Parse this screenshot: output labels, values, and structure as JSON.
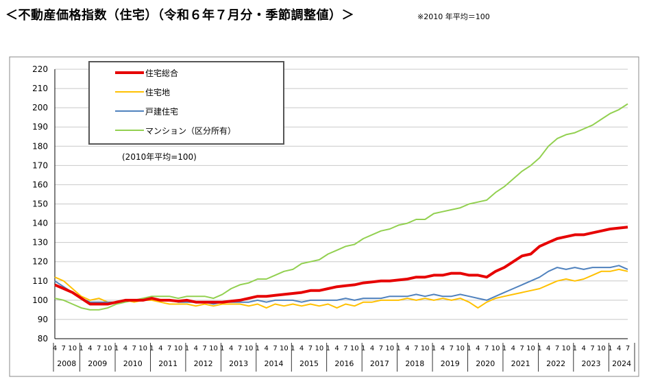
{
  "header": {
    "title": "＜不動産価格指数（住宅）（令和６年７月分・季節調整値）＞",
    "note": "※2010 年平均＝100"
  },
  "chart_data": {
    "type": "line",
    "annotation": "(2010年平均=100)",
    "ylim": [
      80,
      220
    ],
    "yticks": [
      80,
      90,
      100,
      110,
      120,
      130,
      140,
      150,
      160,
      170,
      180,
      190,
      200,
      210,
      220
    ],
    "x_start": "2008-04",
    "x_end": "2024-07",
    "month_ticks": [
      "4",
      "7",
      "10",
      "1"
    ],
    "years": [
      "2008",
      "2009",
      "2010",
      "2011",
      "2012",
      "2013",
      "2014",
      "2015",
      "2016",
      "2017",
      "2018",
      "2019",
      "2020",
      "2021",
      "2022",
      "2023",
      "2024"
    ],
    "grid": true,
    "legend_position": "top-left",
    "series": [
      {
        "name": "住宅総合",
        "color": "#e60000",
        "points": [
          [
            "2008-04",
            108
          ],
          [
            "2008-07",
            106
          ],
          [
            "2008-10",
            104
          ],
          [
            "2009-01",
            101
          ],
          [
            "2009-04",
            98
          ],
          [
            "2009-07",
            98
          ],
          [
            "2009-10",
            98
          ],
          [
            "2010-01",
            99
          ],
          [
            "2010-04",
            100
          ],
          [
            "2010-07",
            100
          ],
          [
            "2010-10",
            100
          ],
          [
            "2011-01",
            101
          ],
          [
            "2011-04",
            100
          ],
          [
            "2011-07",
            100
          ],
          [
            "2011-10",
            99.5
          ],
          [
            "2012-01",
            100
          ],
          [
            "2012-04",
            99
          ],
          [
            "2012-07",
            99
          ],
          [
            "2012-10",
            99
          ],
          [
            "2013-01",
            99
          ],
          [
            "2013-04",
            99.5
          ],
          [
            "2013-07",
            100
          ],
          [
            "2013-10",
            101
          ],
          [
            "2014-01",
            102
          ],
          [
            "2014-04",
            102
          ],
          [
            "2014-07",
            102.5
          ],
          [
            "2014-10",
            103
          ],
          [
            "2015-01",
            103.5
          ],
          [
            "2015-04",
            104
          ],
          [
            "2015-07",
            105
          ],
          [
            "2015-10",
            105
          ],
          [
            "2016-01",
            106
          ],
          [
            "2016-04",
            107
          ],
          [
            "2016-07",
            107.5
          ],
          [
            "2016-10",
            108
          ],
          [
            "2017-01",
            109
          ],
          [
            "2017-04",
            109.5
          ],
          [
            "2017-07",
            110
          ],
          [
            "2017-10",
            110
          ],
          [
            "2018-01",
            110.5
          ],
          [
            "2018-04",
            111
          ],
          [
            "2018-07",
            112
          ],
          [
            "2018-10",
            112
          ],
          [
            "2019-01",
            113
          ],
          [
            "2019-04",
            113
          ],
          [
            "2019-07",
            114
          ],
          [
            "2019-10",
            114
          ],
          [
            "2020-01",
            113
          ],
          [
            "2020-04",
            113
          ],
          [
            "2020-07",
            112
          ],
          [
            "2020-10",
            115
          ],
          [
            "2021-01",
            117
          ],
          [
            "2021-04",
            120
          ],
          [
            "2021-07",
            123
          ],
          [
            "2021-10",
            124
          ],
          [
            "2022-01",
            128
          ],
          [
            "2022-04",
            130
          ],
          [
            "2022-07",
            132
          ],
          [
            "2022-10",
            133
          ],
          [
            "2023-01",
            134
          ],
          [
            "2023-04",
            134
          ],
          [
            "2023-07",
            135
          ],
          [
            "2023-10",
            136
          ],
          [
            "2024-01",
            137
          ],
          [
            "2024-04",
            137.5
          ],
          [
            "2024-07",
            138
          ]
        ]
      },
      {
        "name": "住宅地",
        "color": "#ffc000",
        "points": [
          [
            "2008-04",
            112
          ],
          [
            "2008-07",
            110
          ],
          [
            "2008-10",
            106
          ],
          [
            "2009-01",
            102
          ],
          [
            "2009-04",
            100
          ],
          [
            "2009-07",
            101
          ],
          [
            "2009-10",
            99
          ],
          [
            "2010-01",
            99
          ],
          [
            "2010-04",
            100
          ],
          [
            "2010-07",
            99
          ],
          [
            "2010-10",
            100
          ],
          [
            "2011-01",
            100
          ],
          [
            "2011-04",
            99
          ],
          [
            "2011-07",
            98
          ],
          [
            "2011-10",
            98
          ],
          [
            "2012-01",
            98
          ],
          [
            "2012-04",
            97
          ],
          [
            "2012-07",
            98
          ],
          [
            "2012-10",
            97
          ],
          [
            "2013-01",
            98
          ],
          [
            "2013-04",
            98
          ],
          [
            "2013-07",
            98
          ],
          [
            "2013-10",
            97
          ],
          [
            "2014-01",
            98
          ],
          [
            "2014-04",
            96
          ],
          [
            "2014-07",
            98
          ],
          [
            "2014-10",
            97
          ],
          [
            "2015-01",
            98
          ],
          [
            "2015-04",
            97
          ],
          [
            "2015-07",
            98
          ],
          [
            "2015-10",
            97
          ],
          [
            "2016-01",
            98
          ],
          [
            "2016-04",
            96
          ],
          [
            "2016-07",
            98
          ],
          [
            "2016-10",
            97
          ],
          [
            "2017-01",
            99
          ],
          [
            "2017-04",
            99
          ],
          [
            "2017-07",
            100
          ],
          [
            "2017-10",
            100
          ],
          [
            "2018-01",
            100
          ],
          [
            "2018-04",
            101
          ],
          [
            "2018-07",
            100
          ],
          [
            "2018-10",
            101
          ],
          [
            "2019-01",
            100
          ],
          [
            "2019-04",
            101
          ],
          [
            "2019-07",
            100
          ],
          [
            "2019-10",
            101
          ],
          [
            "2020-01",
            99
          ],
          [
            "2020-04",
            96
          ],
          [
            "2020-07",
            99
          ],
          [
            "2020-10",
            101
          ],
          [
            "2021-01",
            102
          ],
          [
            "2021-04",
            103
          ],
          [
            "2021-07",
            104
          ],
          [
            "2021-10",
            105
          ],
          [
            "2022-01",
            106
          ],
          [
            "2022-04",
            108
          ],
          [
            "2022-07",
            110
          ],
          [
            "2022-10",
            111
          ],
          [
            "2023-01",
            110
          ],
          [
            "2023-04",
            111
          ],
          [
            "2023-07",
            113
          ],
          [
            "2023-10",
            115
          ],
          [
            "2024-01",
            115
          ],
          [
            "2024-04",
            116
          ],
          [
            "2024-07",
            115
          ]
        ]
      },
      {
        "name": "戸建住宅",
        "color": "#4f81bd",
        "points": [
          [
            "2008-04",
            110
          ],
          [
            "2008-07",
            107
          ],
          [
            "2008-10",
            104
          ],
          [
            "2009-01",
            101
          ],
          [
            "2009-04",
            99
          ],
          [
            "2009-07",
            99
          ],
          [
            "2009-10",
            99
          ],
          [
            "2010-01",
            99
          ],
          [
            "2010-04",
            100
          ],
          [
            "2010-07",
            100
          ],
          [
            "2010-10",
            100
          ],
          [
            "2011-01",
            101
          ],
          [
            "2011-04",
            100
          ],
          [
            "2011-07",
            100
          ],
          [
            "2011-10",
            99
          ],
          [
            "2012-01",
            99
          ],
          [
            "2012-04",
            99
          ],
          [
            "2012-07",
            99
          ],
          [
            "2012-10",
            98
          ],
          [
            "2013-01",
            99
          ],
          [
            "2013-04",
            99
          ],
          [
            "2013-07",
            99
          ],
          [
            "2013-10",
            99
          ],
          [
            "2014-01",
            100
          ],
          [
            "2014-04",
            99
          ],
          [
            "2014-07",
            100
          ],
          [
            "2014-10",
            100
          ],
          [
            "2015-01",
            100
          ],
          [
            "2015-04",
            99
          ],
          [
            "2015-07",
            100
          ],
          [
            "2015-10",
            100
          ],
          [
            "2016-01",
            100
          ],
          [
            "2016-04",
            100
          ],
          [
            "2016-07",
            101
          ],
          [
            "2016-10",
            100
          ],
          [
            "2017-01",
            101
          ],
          [
            "2017-04",
            101
          ],
          [
            "2017-07",
            101
          ],
          [
            "2017-10",
            102
          ],
          [
            "2018-01",
            102
          ],
          [
            "2018-04",
            102
          ],
          [
            "2018-07",
            103
          ],
          [
            "2018-10",
            102
          ],
          [
            "2019-01",
            103
          ],
          [
            "2019-04",
            102
          ],
          [
            "2019-07",
            102
          ],
          [
            "2019-10",
            103
          ],
          [
            "2020-01",
            102
          ],
          [
            "2020-04",
            101
          ],
          [
            "2020-07",
            100
          ],
          [
            "2020-10",
            102
          ],
          [
            "2021-01",
            104
          ],
          [
            "2021-04",
            106
          ],
          [
            "2021-07",
            108
          ],
          [
            "2021-10",
            110
          ],
          [
            "2022-01",
            112
          ],
          [
            "2022-04",
            115
          ],
          [
            "2022-07",
            117
          ],
          [
            "2022-10",
            116
          ],
          [
            "2023-01",
            117
          ],
          [
            "2023-04",
            116
          ],
          [
            "2023-07",
            117
          ],
          [
            "2023-10",
            117
          ],
          [
            "2024-01",
            117
          ],
          [
            "2024-04",
            118
          ],
          [
            "2024-07",
            116
          ]
        ]
      },
      {
        "name": "マンション（区分所有）",
        "color": "#92d050",
        "points": [
          [
            "2008-04",
            101
          ],
          [
            "2008-07",
            100
          ],
          [
            "2008-10",
            98
          ],
          [
            "2009-01",
            96
          ],
          [
            "2009-04",
            95
          ],
          [
            "2009-07",
            95
          ],
          [
            "2009-10",
            96
          ],
          [
            "2010-01",
            98
          ],
          [
            "2010-04",
            99
          ],
          [
            "2010-07",
            100
          ],
          [
            "2010-10",
            101
          ],
          [
            "2011-01",
            102
          ],
          [
            "2011-04",
            102
          ],
          [
            "2011-07",
            102
          ],
          [
            "2011-10",
            101
          ],
          [
            "2012-01",
            102
          ],
          [
            "2012-04",
            102
          ],
          [
            "2012-07",
            102
          ],
          [
            "2012-10",
            101
          ],
          [
            "2013-01",
            103
          ],
          [
            "2013-04",
            106
          ],
          [
            "2013-07",
            108
          ],
          [
            "2013-10",
            109
          ],
          [
            "2014-01",
            111
          ],
          [
            "2014-04",
            111
          ],
          [
            "2014-07",
            113
          ],
          [
            "2014-10",
            115
          ],
          [
            "2015-01",
            116
          ],
          [
            "2015-04",
            119
          ],
          [
            "2015-07",
            120
          ],
          [
            "2015-10",
            121
          ],
          [
            "2016-01",
            124
          ],
          [
            "2016-04",
            126
          ],
          [
            "2016-07",
            128
          ],
          [
            "2016-10",
            129
          ],
          [
            "2017-01",
            132
          ],
          [
            "2017-04",
            134
          ],
          [
            "2017-07",
            136
          ],
          [
            "2017-10",
            137
          ],
          [
            "2018-01",
            139
          ],
          [
            "2018-04",
            140
          ],
          [
            "2018-07",
            142
          ],
          [
            "2018-10",
            142
          ],
          [
            "2019-01",
            145
          ],
          [
            "2019-04",
            146
          ],
          [
            "2019-07",
            147
          ],
          [
            "2019-10",
            148
          ],
          [
            "2020-01",
            150
          ],
          [
            "2020-04",
            151
          ],
          [
            "2020-07",
            152
          ],
          [
            "2020-10",
            156
          ],
          [
            "2021-01",
            159
          ],
          [
            "2021-04",
            163
          ],
          [
            "2021-07",
            167
          ],
          [
            "2021-10",
            170
          ],
          [
            "2022-01",
            174
          ],
          [
            "2022-04",
            180
          ],
          [
            "2022-07",
            184
          ],
          [
            "2022-10",
            186
          ],
          [
            "2023-01",
            187
          ],
          [
            "2023-04",
            189
          ],
          [
            "2023-07",
            191
          ],
          [
            "2023-10",
            194
          ],
          [
            "2024-01",
            197
          ],
          [
            "2024-04",
            199
          ],
          [
            "2024-07",
            202
          ]
        ]
      }
    ]
  }
}
